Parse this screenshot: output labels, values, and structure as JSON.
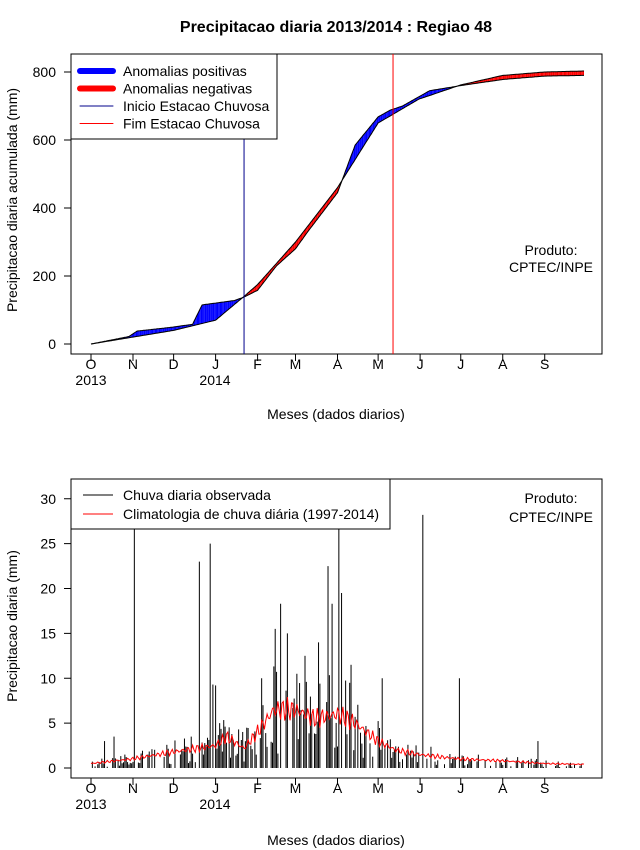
{
  "title": "Precipitacao diaria 2013/2014 : Regiao 48",
  "colors": {
    "positive": "#0000ff",
    "negative": "#ff0000",
    "start_line": "#00008b",
    "end_line": "#ff0000",
    "observed": "#000000",
    "climatology": "#ff0000"
  },
  "chart_data": [
    {
      "type": "area",
      "xlabel": "Meses (dados diarios)",
      "ylabel": "Precipitacao diaria acumulada (mm)",
      "ylim": [
        0,
        830
      ],
      "yticks": [
        "0",
        "200",
        "400",
        "600",
        "800"
      ],
      "months": [
        "O",
        "N",
        "D",
        "J",
        "F",
        "M",
        "A",
        "M",
        "J",
        "J",
        "A",
        "S"
      ],
      "years": [
        "2013",
        "2014"
      ],
      "legend": {
        "position": "top-left",
        "items": [
          "Anomalias positivas",
          "Anomalias negativas",
          "Inicio Estacao Chuvosa",
          "Fim Estacao Chuvosa"
        ]
      },
      "annotation": [
        "Produto:",
        "CPTEC/INPE"
      ],
      "rainy_season": {
        "start_day": 113,
        "end_day": 223
      },
      "climatology_cumulative": {
        "day": [
          0,
          61,
          92,
          113,
          123,
          151,
          182,
          212,
          242,
          273,
          304,
          335,
          364
        ],
        "mm": [
          0,
          40,
          70,
          140,
          175,
          300,
          460,
          650,
          720,
          762,
          790,
          800,
          803
        ]
      },
      "observed_cumulative": {
        "day": [
          0,
          28,
          34,
          61,
          75,
          82,
          106,
          113,
          123,
          137,
          151,
          160,
          182,
          195,
          212,
          221,
          230,
          250,
          273,
          304,
          335,
          364
        ],
        "mm": [
          0,
          22,
          38,
          50,
          58,
          115,
          128,
          138,
          158,
          230,
          280,
          330,
          445,
          585,
          668,
          688,
          700,
          745,
          760,
          778,
          788,
          790
        ]
      }
    },
    {
      "type": "bar",
      "xlabel": "Meses (dados diarios)",
      "ylabel": "Precipitacao diaria (mm)",
      "ylim": [
        0,
        32
      ],
      "yticks": [
        "0",
        "5",
        "10",
        "15",
        "20",
        "25",
        "30"
      ],
      "months": [
        "O",
        "N",
        "D",
        "J",
        "F",
        "M",
        "A",
        "M",
        "J",
        "J",
        "A",
        "S"
      ],
      "years": [
        "2013",
        "2014"
      ],
      "legend": {
        "position": "top-left",
        "items": [
          "Chuva diaria observada",
          "Climatologia de chuva diária (1997-2014)"
        ]
      },
      "annotation": [
        "Produto:",
        "CPTEC/INPE"
      ],
      "observed_peaks": {
        "day": [
          10,
          17,
          32,
          42,
          80,
          88,
          90,
          92,
          95,
          126,
          136,
          140,
          145,
          152,
          158,
          168,
          175,
          178,
          183,
          185,
          192,
          215,
          245,
          272,
          330
        ],
        "mm": [
          3,
          3.5,
          29,
          1.5,
          23,
          25,
          9.3,
          9.2,
          5,
          10,
          15.5,
          18.3,
          15,
          10.5,
          12.5,
          14,
          22.5,
          18.3,
          29,
          19.5,
          11.5,
          10,
          28.2,
          10,
          3
        ]
      },
      "climatology_daily": {
        "day": [
          0,
          30,
          61,
          92,
          100,
          113,
          123,
          135,
          151,
          165,
          182,
          195,
          212,
          225,
          242,
          273,
          304,
          335,
          364
        ],
        "mm": [
          0.5,
          1,
          1.8,
          2.5,
          3.5,
          2.2,
          4,
          6.5,
          6.5,
          5.5,
          6,
          5,
          3,
          2,
          1.5,
          1,
          0.8,
          0.5,
          0.4
        ]
      }
    }
  ]
}
